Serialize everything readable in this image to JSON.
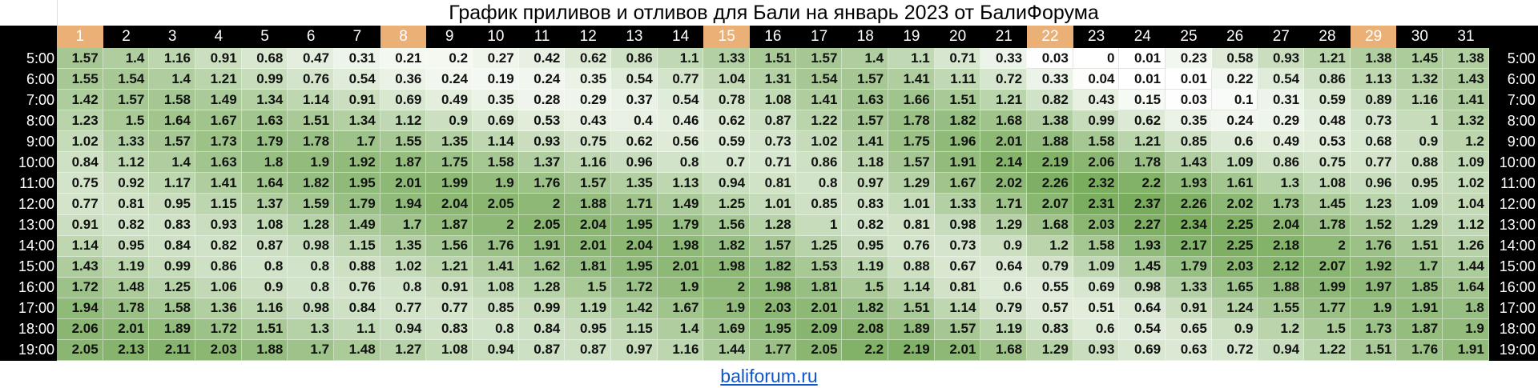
{
  "title": "График приливов и отливов для Бали на январь 2023 от БалиФорума",
  "link": "baliforum.ru",
  "colors": {
    "header_bg": "#000000",
    "weekend_header": "#ebb076",
    "scale_low": "#ffffff",
    "scale_high": "#78ab5c"
  },
  "days": [
    "1",
    "2",
    "3",
    "4",
    "5",
    "6",
    "7",
    "8",
    "9",
    "10",
    "11",
    "12",
    "13",
    "14",
    "15",
    "16",
    "17",
    "18",
    "19",
    "20",
    "21",
    "22",
    "23",
    "24",
    "25",
    "26",
    "27",
    "28",
    "29",
    "30",
    "31"
  ],
  "highlighted_days": [
    "1",
    "8",
    "15",
    "22",
    "29"
  ],
  "chart_data": {
    "type": "heatmap",
    "title": "График приливов и отливов для Бали на январь 2023 от БалиФорума",
    "x": [
      "1",
      "2",
      "3",
      "4",
      "5",
      "6",
      "7",
      "8",
      "9",
      "10",
      "11",
      "12",
      "13",
      "14",
      "15",
      "16",
      "17",
      "18",
      "19",
      "20",
      "21",
      "22",
      "23",
      "24",
      "25",
      "26",
      "27",
      "28",
      "29",
      "30",
      "31"
    ],
    "rows": [
      {
        "time": "5:00",
        "values": [
          1.57,
          1.4,
          1.16,
          0.91,
          0.68,
          0.47,
          0.31,
          0.21,
          0.2,
          0.27,
          0.42,
          0.62,
          0.86,
          1.1,
          1.33,
          1.51,
          1.57,
          1.4,
          1.1,
          0.71,
          0.33,
          0.03,
          0,
          0.01,
          0.23,
          0.58,
          0.93,
          1.21,
          1.38,
          1.45,
          1.38
        ]
      },
      {
        "time": "6:00",
        "values": [
          1.55,
          1.54,
          1.4,
          1.21,
          0.99,
          0.76,
          0.54,
          0.36,
          0.24,
          0.19,
          0.24,
          0.35,
          0.54,
          0.77,
          1.04,
          1.31,
          1.54,
          1.57,
          1.41,
          1.11,
          0.72,
          0.33,
          0.04,
          0.01,
          0.01,
          0.22,
          0.54,
          0.86,
          1.13,
          1.32,
          1.43
        ]
      },
      {
        "time": "7:00",
        "values": [
          1.42,
          1.57,
          1.58,
          1.49,
          1.34,
          1.14,
          0.91,
          0.69,
          0.49,
          0.35,
          0.28,
          0.29,
          0.37,
          0.54,
          0.78,
          1.08,
          1.41,
          1.63,
          1.66,
          1.51,
          1.21,
          0.82,
          0.43,
          0.15,
          0.03,
          0.1,
          0.31,
          0.59,
          0.89,
          1.16,
          1.41
        ]
      },
      {
        "time": "8:00",
        "values": [
          1.23,
          1.5,
          1.64,
          1.67,
          1.63,
          1.51,
          1.34,
          1.12,
          0.9,
          0.69,
          0.53,
          0.43,
          0.4,
          0.46,
          0.62,
          0.87,
          1.22,
          1.57,
          1.78,
          1.82,
          1.68,
          1.38,
          0.99,
          0.62,
          0.35,
          0.24,
          0.29,
          0.48,
          0.73,
          1,
          1.32
        ]
      },
      {
        "time": "9:00",
        "values": [
          1.02,
          1.33,
          1.57,
          1.73,
          1.79,
          1.78,
          1.7,
          1.55,
          1.35,
          1.14,
          0.93,
          0.75,
          0.62,
          0.56,
          0.59,
          0.73,
          1.02,
          1.41,
          1.75,
          1.96,
          2.01,
          1.88,
          1.58,
          1.21,
          0.85,
          0.6,
          0.49,
          0.53,
          0.68,
          0.9,
          1.2
        ]
      },
      {
        "time": "10:00",
        "values": [
          0.84,
          1.12,
          1.4,
          1.63,
          1.8,
          1.9,
          1.92,
          1.87,
          1.75,
          1.58,
          1.37,
          1.16,
          0.96,
          0.8,
          0.7,
          0.71,
          0.86,
          1.18,
          1.57,
          1.91,
          2.14,
          2.19,
          2.06,
          1.78,
          1.43,
          1.09,
          0.86,
          0.75,
          0.77,
          0.88,
          1.09
        ]
      },
      {
        "time": "11:00",
        "values": [
          0.75,
          0.92,
          1.17,
          1.41,
          1.64,
          1.82,
          1.95,
          2.01,
          1.99,
          1.9,
          1.76,
          1.57,
          1.35,
          1.13,
          0.94,
          0.81,
          0.8,
          0.97,
          1.29,
          1.67,
          2.02,
          2.26,
          2.32,
          2.2,
          1.93,
          1.61,
          1.3,
          1.08,
          0.96,
          0.95,
          1.02
        ]
      },
      {
        "time": "12:00",
        "values": [
          0.77,
          0.81,
          0.95,
          1.15,
          1.37,
          1.59,
          1.79,
          1.94,
          2.04,
          2.05,
          2,
          1.88,
          1.71,
          1.49,
          1.25,
          1.01,
          0.85,
          0.83,
          1.01,
          1.33,
          1.71,
          2.07,
          2.31,
          2.37,
          2.26,
          2.02,
          1.73,
          1.45,
          1.23,
          1.09,
          1.04
        ]
      },
      {
        "time": "13:00",
        "values": [
          0.91,
          0.82,
          0.83,
          0.93,
          1.08,
          1.28,
          1.49,
          1.7,
          1.87,
          2,
          2.05,
          2.04,
          1.95,
          1.79,
          1.56,
          1.28,
          1,
          0.82,
          0.81,
          0.98,
          1.29,
          1.68,
          2.03,
          2.27,
          2.34,
          2.25,
          2.04,
          1.78,
          1.52,
          1.29,
          1.12
        ]
      },
      {
        "time": "14:00",
        "values": [
          1.14,
          0.95,
          0.84,
          0.82,
          0.87,
          0.98,
          1.15,
          1.35,
          1.56,
          1.76,
          1.91,
          2.01,
          2.04,
          1.98,
          1.82,
          1.57,
          1.25,
          0.95,
          0.76,
          0.73,
          0.9,
          1.2,
          1.58,
          1.93,
          2.17,
          2.25,
          2.18,
          2,
          1.76,
          1.51,
          1.26
        ]
      },
      {
        "time": "15:00",
        "values": [
          1.43,
          1.19,
          0.99,
          0.86,
          0.8,
          0.8,
          0.88,
          1.02,
          1.21,
          1.41,
          1.62,
          1.81,
          1.95,
          2.01,
          1.98,
          1.82,
          1.53,
          1.19,
          0.88,
          0.67,
          0.64,
          0.79,
          1.09,
          1.45,
          1.79,
          2.03,
          2.12,
          2.07,
          1.92,
          1.7,
          1.44
        ]
      },
      {
        "time": "16:00",
        "values": [
          1.72,
          1.48,
          1.25,
          1.06,
          0.9,
          0.8,
          0.76,
          0.8,
          0.91,
          1.08,
          1.28,
          1.5,
          1.72,
          1.9,
          2,
          1.98,
          1.81,
          1.5,
          1.14,
          0.81,
          0.6,
          0.55,
          0.69,
          0.98,
          1.33,
          1.65,
          1.88,
          1.99,
          1.97,
          1.85,
          1.64
        ]
      },
      {
        "time": "17:00",
        "values": [
          1.94,
          1.78,
          1.58,
          1.36,
          1.16,
          0.98,
          0.84,
          0.77,
          0.77,
          0.85,
          0.99,
          1.19,
          1.42,
          1.67,
          1.9,
          2.03,
          2.01,
          1.82,
          1.51,
          1.14,
          0.79,
          0.57,
          0.51,
          0.64,
          0.91,
          1.24,
          1.55,
          1.77,
          1.9,
          1.91,
          1.8
        ]
      },
      {
        "time": "18:00",
        "values": [
          2.06,
          2.01,
          1.89,
          1.72,
          1.51,
          1.3,
          1.1,
          0.94,
          0.83,
          0.8,
          0.84,
          0.95,
          1.15,
          1.4,
          1.69,
          1.95,
          2.09,
          2.08,
          1.89,
          1.57,
          1.19,
          0.83,
          0.6,
          0.54,
          0.65,
          0.9,
          1.2,
          1.5,
          1.73,
          1.87,
          1.9
        ]
      },
      {
        "time": "19:00",
        "values": [
          2.05,
          2.13,
          2.11,
          2.03,
          1.88,
          1.7,
          1.48,
          1.27,
          1.08,
          0.94,
          0.87,
          0.87,
          0.97,
          1.16,
          1.44,
          1.77,
          2.05,
          2.2,
          2.19,
          2.01,
          1.68,
          1.29,
          0.93,
          0.69,
          0.63,
          0.72,
          0.94,
          1.22,
          1.51,
          1.76,
          1.91
        ]
      }
    ],
    "color_scale": {
      "min": 0,
      "max": 2.37
    }
  }
}
